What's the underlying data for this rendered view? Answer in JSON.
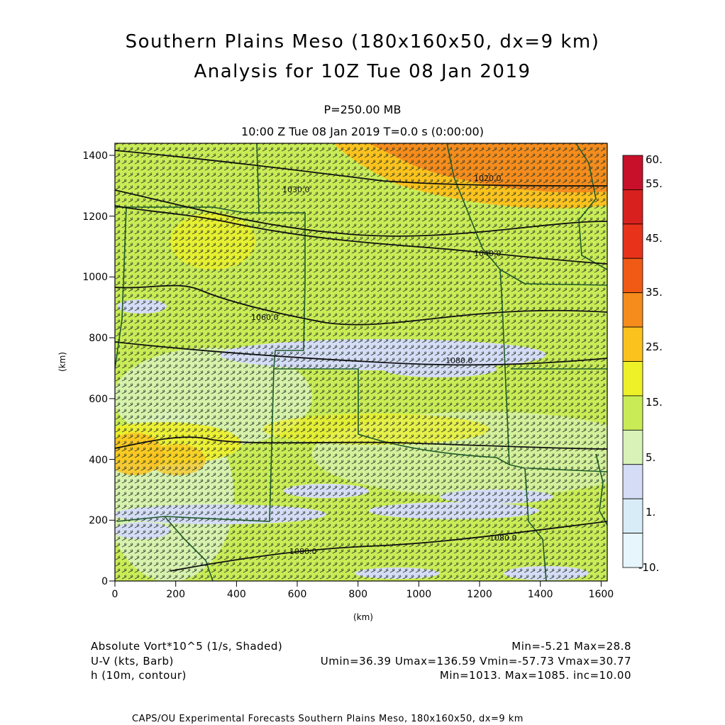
{
  "header": {
    "title_line1": "Southern Plains Meso (180x160x50, dx=9 km)",
    "title_line2": "Analysis for 10Z Tue 08 Jan 2019",
    "level": "P=250.00 MB",
    "time": "10:00 Z Tue 08 Jan 2019    T=0.0 s (0:00:00)"
  },
  "axes": {
    "x_label": "(km)",
    "y_label": "(km)",
    "x_ticks": [
      "0",
      "200",
      "400",
      "600",
      "800",
      "1000",
      "1200",
      "1400",
      "1600"
    ],
    "y_ticks": [
      "0",
      "200",
      "400",
      "600",
      "800",
      "1000",
      "1200",
      "1400"
    ],
    "x_range": [
      0,
      1620
    ],
    "y_range": [
      0,
      1440
    ]
  },
  "colorbar": {
    "labels": [
      "60.",
      "55.",
      "45.",
      "35.",
      "25.",
      "15.",
      "5.",
      "1.",
      "-10."
    ],
    "colors": [
      "#c8102a",
      "#d8201e",
      "#e8321a",
      "#f05a14",
      "#f58c1c",
      "#fbc21e",
      "#eef028",
      "#c9ec56",
      "#d8f2b8",
      "#d4dcf6",
      "#d8ecf8",
      "#e6f6fc"
    ]
  },
  "contours": {
    "labels": [
      {
        "text": "1020.0",
        "x": 1240,
        "y": 1325
      },
      {
        "text": "1030.0",
        "x": 560,
        "y": 1280
      },
      {
        "text": "1040.0",
        "x": 1240,
        "y": 1075
      },
      {
        "text": "1060.0",
        "x": 500,
        "y": 870
      },
      {
        "text": "1080.0",
        "x": 1140,
        "y": 720
      },
      {
        "text": "1080.0",
        "x": 630,
        "y": 95
      },
      {
        "text": "1080.0",
        "x": 1290,
        "y": 140
      }
    ]
  },
  "footer": {
    "field1_label": "Absolute Vort*10^5 (1/s, Shaded)",
    "field1_stats": "Min=-5.21 Max=28.8",
    "field2_label": "U-V (kts, Barb)",
    "field2_stats": "Umin=36.39 Umax=136.59 Vmin=-57.73 Vmax=30.77",
    "field3_label": "h (10m, contour)",
    "field3_stats": "Min=1013. Max=1085. inc=10.00",
    "credit": "CAPS/OU Experimental Forecasts  Southern Plains Meso, 180x160x50, dx=9 km"
  }
}
